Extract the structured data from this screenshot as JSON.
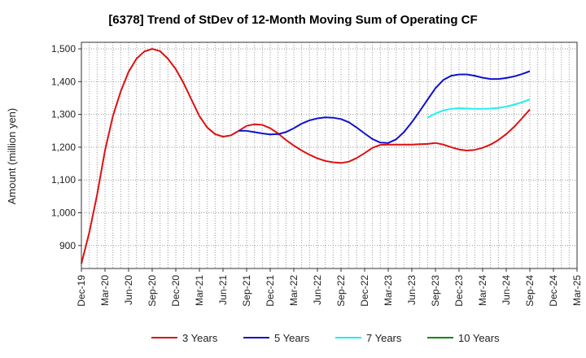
{
  "chart_data": {
    "type": "line",
    "title": "[6378]  Trend of StDev of 12-Month Moving Sum of Operating CF",
    "xlabel": "",
    "ylabel": "Amount (million yen)",
    "ylim": [
      830,
      1520
    ],
    "yticks": [
      900,
      1000,
      1100,
      1200,
      1300,
      1400,
      1500
    ],
    "ytick_labels": [
      "900",
      "1,000",
      "1,100",
      "1,200",
      "1,300",
      "1,400",
      "1,500"
    ],
    "xlim": [
      "Dec-19",
      "Mar-25"
    ],
    "xticks": [
      "Dec-19",
      "Mar-20",
      "Jun-20",
      "Sep-20",
      "Dec-20",
      "Mar-21",
      "Jun-21",
      "Sep-21",
      "Dec-21",
      "Mar-22",
      "Jun-22",
      "Sep-22",
      "Dec-22",
      "Mar-23",
      "Jun-23",
      "Sep-23",
      "Dec-23",
      "Mar-24",
      "Jun-24",
      "Sep-24",
      "Dec-24",
      "Mar-25"
    ],
    "grid": true,
    "legend_position": "bottom",
    "series": [
      {
        "name": "3 Years",
        "color": "#dd1111",
        "points": [
          [
            "Dec-19",
            845
          ],
          [
            "Jan-20",
            940
          ],
          [
            "Feb-20",
            1055
          ],
          [
            "Mar-20",
            1190
          ],
          [
            "Apr-20",
            1295
          ],
          [
            "May-20",
            1370
          ],
          [
            "Jun-20",
            1430
          ],
          [
            "Jul-20",
            1470
          ],
          [
            "Aug-20",
            1492
          ],
          [
            "Sep-20",
            1500
          ],
          [
            "Oct-20",
            1493
          ],
          [
            "Nov-20",
            1470
          ],
          [
            "Dec-20",
            1438
          ],
          [
            "Jan-21",
            1395
          ],
          [
            "Feb-21",
            1345
          ],
          [
            "Mar-21",
            1295
          ],
          [
            "Apr-21",
            1260
          ],
          [
            "May-21",
            1240
          ],
          [
            "Jun-21",
            1232
          ],
          [
            "Jul-21",
            1236
          ],
          [
            "Aug-21",
            1250
          ],
          [
            "Sep-21",
            1265
          ],
          [
            "Oct-21",
            1270
          ],
          [
            "Nov-21",
            1268
          ],
          [
            "Dec-21",
            1258
          ],
          [
            "Jan-22",
            1242
          ],
          [
            "Feb-22",
            1222
          ],
          [
            "Mar-22",
            1205
          ],
          [
            "Apr-22",
            1190
          ],
          [
            "May-22",
            1177
          ],
          [
            "Jun-22",
            1166
          ],
          [
            "Jul-22",
            1158
          ],
          [
            "Aug-22",
            1154
          ],
          [
            "Sep-22",
            1152
          ],
          [
            "Oct-22",
            1156
          ],
          [
            "Nov-22",
            1167
          ],
          [
            "Dec-22",
            1182
          ],
          [
            "Jan-23",
            1198
          ],
          [
            "Feb-23",
            1207
          ],
          [
            "Mar-23",
            1208
          ],
          [
            "Apr-23",
            1208
          ],
          [
            "May-23",
            1208
          ],
          [
            "Jun-23",
            1208
          ],
          [
            "Jul-23",
            1209
          ],
          [
            "Aug-23",
            1210
          ],
          [
            "Sep-23",
            1213
          ],
          [
            "Oct-23",
            1208
          ],
          [
            "Nov-23",
            1200
          ],
          [
            "Dec-23",
            1193
          ],
          [
            "Jan-24",
            1190
          ],
          [
            "Feb-24",
            1192
          ],
          [
            "Mar-24",
            1198
          ],
          [
            "Apr-24",
            1208
          ],
          [
            "May-24",
            1222
          ],
          [
            "Jun-24",
            1240
          ],
          [
            "Jul-24",
            1262
          ],
          [
            "Aug-24",
            1288
          ],
          [
            "Sep-24",
            1315
          ]
        ]
      },
      {
        "name": "5 Years",
        "color": "#1111cc",
        "points": [
          [
            "Aug-21",
            1250
          ],
          [
            "Sep-21",
            1250
          ],
          [
            "Oct-21",
            1246
          ],
          [
            "Nov-21",
            1242
          ],
          [
            "Dec-21",
            1239
          ],
          [
            "Jan-22",
            1240
          ],
          [
            "Feb-22",
            1246
          ],
          [
            "Mar-22",
            1258
          ],
          [
            "Apr-22",
            1272
          ],
          [
            "May-22",
            1282
          ],
          [
            "Jun-22",
            1288
          ],
          [
            "Jul-22",
            1291
          ],
          [
            "Aug-22",
            1290
          ],
          [
            "Sep-22",
            1286
          ],
          [
            "Oct-22",
            1276
          ],
          [
            "Nov-22",
            1260
          ],
          [
            "Dec-22",
            1242
          ],
          [
            "Jan-23",
            1225
          ],
          [
            "Feb-23",
            1214
          ],
          [
            "Mar-23",
            1213
          ],
          [
            "Apr-23",
            1224
          ],
          [
            "May-23",
            1246
          ],
          [
            "Jun-23",
            1276
          ],
          [
            "Jul-23",
            1310
          ],
          [
            "Aug-23",
            1345
          ],
          [
            "Sep-23",
            1380
          ],
          [
            "Oct-23",
            1405
          ],
          [
            "Nov-23",
            1418
          ],
          [
            "Dec-23",
            1422
          ],
          [
            "Jan-24",
            1422
          ],
          [
            "Feb-24",
            1418
          ],
          [
            "Mar-24",
            1412
          ],
          [
            "Apr-24",
            1408
          ],
          [
            "May-24",
            1408
          ],
          [
            "Jun-24",
            1411
          ],
          [
            "Jul-24",
            1416
          ],
          [
            "Aug-24",
            1423
          ],
          [
            "Sep-24",
            1432
          ]
        ]
      },
      {
        "name": "7 Years",
        "color": "#22eeee",
        "points": [
          [
            "Aug-23",
            1290
          ],
          [
            "Sep-23",
            1303
          ],
          [
            "Oct-23",
            1312
          ],
          [
            "Nov-23",
            1317
          ],
          [
            "Dec-23",
            1319
          ],
          [
            "Jan-24",
            1318
          ],
          [
            "Feb-24",
            1317
          ],
          [
            "Mar-24",
            1317
          ],
          [
            "Apr-24",
            1318
          ],
          [
            "May-24",
            1320
          ],
          [
            "Jun-24",
            1324
          ],
          [
            "Jul-24",
            1330
          ],
          [
            "Aug-24",
            1337
          ],
          [
            "Sep-24",
            1346
          ]
        ]
      },
      {
        "name": "10 Years",
        "color": "#118811",
        "points": []
      }
    ]
  }
}
